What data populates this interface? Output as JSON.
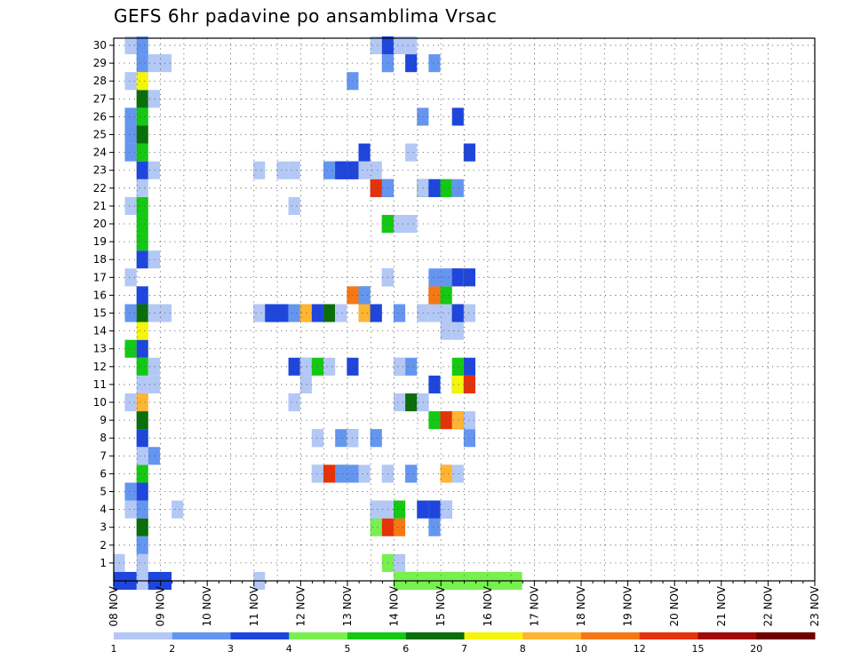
{
  "title": "GEFS 6hr padavine po ansamblima Vrsac",
  "chart_data": {
    "type": "heatmap",
    "title": "GEFS 6hr padavine po ansamblima Vrsac",
    "xlabel": "",
    "ylabel": "",
    "x_tick_labels": [
      "08 NOV",
      "09 NOV",
      "10 NOV",
      "11 NOV",
      "12 NOV",
      "13 NOV",
      "14 NOV",
      "15 NOV",
      "16 NOV",
      "17 NOV",
      "18 NOV",
      "19 NOV",
      "20 NOV",
      "21 NOV",
      "22 NOV",
      "23 NOV"
    ],
    "y_tick_labels": [
      "1",
      "2",
      "3",
      "4",
      "5",
      "6",
      "7",
      "8",
      "9",
      "10",
      "11",
      "12",
      "13",
      "14",
      "15",
      "16",
      "17",
      "18",
      "19",
      "20",
      "21",
      "22",
      "23",
      "24",
      "25",
      "26",
      "27",
      "28",
      "29",
      "30"
    ],
    "x_unit": "6-hour steps from 08 NOV 00Z",
    "x_range_steps": [
      0,
      60
    ],
    "y_range": [
      0,
      30
    ],
    "grid": true,
    "legend_position": "bottom",
    "levels": [
      "1",
      "2",
      "3",
      "4",
      "5",
      "6",
      "7",
      "8",
      "10",
      "12",
      "15",
      "20"
    ],
    "colors": [
      "#b4c8f5",
      "#6496f0",
      "#1e46dc",
      "#78f050",
      "#14c814",
      "#0a6e0a",
      "#f5f50a",
      "#ffb432",
      "#f57814",
      "#e6320a",
      "#a00a0a",
      "#6e0000"
    ],
    "cells": [
      [
        0,
        0,
        5,
        3
      ],
      [
        2,
        0,
        1,
        1
      ],
      [
        12,
        0,
        1,
        1
      ],
      [
        24,
        0,
        10,
        1
      ],
      [
        24,
        0,
        10,
        2
      ],
      [
        24,
        0,
        11,
        1
      ],
      [
        24,
        0,
        11,
        4
      ],
      [
        0,
        1,
        1,
        1
      ],
      [
        2,
        1,
        1,
        1
      ],
      [
        23,
        1,
        1,
        4
      ],
      [
        24,
        1,
        1,
        1
      ],
      [
        2,
        2,
        1,
        2
      ],
      [
        2,
        3,
        1,
        6
      ],
      [
        22,
        3,
        1,
        4
      ],
      [
        23,
        3,
        1,
        10
      ],
      [
        27,
        3,
        1,
        2
      ],
      [
        24,
        3,
        1,
        9
      ],
      [
        1,
        4,
        1,
        1
      ],
      [
        2,
        4,
        1,
        2
      ],
      [
        5,
        4,
        1,
        1
      ],
      [
        22,
        4,
        1,
        2
      ],
      [
        22,
        4,
        1,
        1
      ],
      [
        23,
        4,
        1,
        1
      ],
      [
        24,
        4,
        1,
        1
      ],
      [
        24,
        4,
        1,
        5
      ],
      [
        26,
        4,
        1,
        1
      ],
      [
        26,
        4,
        1,
        3
      ],
      [
        27,
        4,
        1,
        2
      ],
      [
        27,
        4,
        1,
        3
      ],
      [
        28,
        4,
        1,
        3
      ],
      [
        28,
        4,
        1,
        1
      ],
      [
        1,
        5,
        1,
        2
      ],
      [
        2,
        5,
        1,
        3
      ],
      [
        2,
        6,
        1,
        5
      ],
      [
        17,
        6,
        1,
        5
      ],
      [
        17,
        6,
        1,
        1
      ],
      [
        18,
        6,
        1,
        9
      ],
      [
        18,
        6,
        1,
        10
      ],
      [
        19,
        6,
        1,
        6
      ],
      [
        19,
        6,
        1,
        2
      ],
      [
        20,
        6,
        1,
        1
      ],
      [
        20,
        6,
        1,
        2
      ],
      [
        21,
        6,
        1,
        1
      ],
      [
        23,
        6,
        1,
        1
      ],
      [
        23,
        6,
        1,
        1
      ],
      [
        25,
        6,
        1,
        1
      ],
      [
        25,
        6,
        1,
        2
      ],
      [
        28,
        6,
        1,
        2
      ],
      [
        28,
        6,
        1,
        8
      ],
      [
        29,
        6,
        1,
        1
      ],
      [
        2,
        7,
        1,
        1
      ],
      [
        3,
        7,
        1,
        2
      ],
      [
        2,
        8,
        1,
        3
      ],
      [
        17,
        8,
        1,
        1
      ],
      [
        17,
        8,
        1,
        1
      ],
      [
        19,
        8,
        1,
        2
      ],
      [
        20,
        8,
        1,
        5
      ],
      [
        20,
        8,
        1,
        1
      ],
      [
        22,
        8,
        1,
        1
      ],
      [
        22,
        8,
        1,
        2
      ],
      [
        30,
        8,
        1,
        2
      ],
      [
        2,
        9,
        1,
        6
      ],
      [
        27,
        9,
        1,
        5
      ],
      [
        28,
        9,
        1,
        8
      ],
      [
        28,
        9,
        1,
        10
      ],
      [
        29,
        9,
        1,
        6
      ],
      [
        29,
        9,
        1,
        8
      ],
      [
        30,
        9,
        1,
        1
      ],
      [
        1,
        10,
        1,
        1
      ],
      [
        2,
        10,
        1,
        8
      ],
      [
        15,
        10,
        1,
        1
      ],
      [
        15,
        10,
        1,
        1
      ],
      [
        24,
        10,
        1,
        1
      ],
      [
        25,
        10,
        1,
        7
      ],
      [
        25,
        10,
        1,
        6
      ],
      [
        26,
        10,
        1,
        2
      ],
      [
        26,
        10,
        1,
        1
      ],
      [
        2,
        11,
        1,
        1
      ],
      [
        3,
        11,
        1,
        1
      ],
      [
        16,
        11,
        1,
        1
      ],
      [
        27,
        11,
        1,
        3
      ],
      [
        29,
        11,
        1,
        3
      ],
      [
        29,
        11,
        1,
        7
      ],
      [
        30,
        11,
        1,
        10
      ],
      [
        2,
        12,
        1,
        5
      ],
      [
        3,
        12,
        1,
        1
      ],
      [
        15,
        12,
        1,
        3
      ],
      [
        16,
        12,
        1,
        2
      ],
      [
        16,
        12,
        1,
        1
      ],
      [
        17,
        12,
        1,
        5
      ],
      [
        18,
        12,
        1,
        1
      ],
      [
        20,
        12,
        1,
        3
      ],
      [
        24,
        12,
        1,
        2
      ],
      [
        24,
        12,
        1,
        1
      ],
      [
        25,
        12,
        1,
        2
      ],
      [
        29,
        12,
        1,
        5
      ],
      [
        30,
        12,
        1,
        3
      ],
      [
        1,
        13,
        1,
        5
      ],
      [
        2,
        13,
        1,
        3
      ],
      [
        2,
        14,
        1,
        7
      ],
      [
        28,
        14,
        1,
        1
      ],
      [
        29,
        14,
        1,
        1
      ],
      [
        1,
        15,
        1,
        2
      ],
      [
        2,
        15,
        1,
        6
      ],
      [
        3,
        15,
        1,
        1
      ],
      [
        4,
        15,
        1,
        1
      ],
      [
        12,
        15,
        1,
        1
      ],
      [
        13,
        15,
        1,
        3
      ],
      [
        13,
        15,
        1,
        3
      ],
      [
        14,
        15,
        1,
        3
      ],
      [
        15,
        15,
        1,
        2
      ],
      [
        16,
        15,
        1,
        5
      ],
      [
        16,
        15,
        1,
        8
      ],
      [
        17,
        15,
        1,
        3
      ],
      [
        18,
        15,
        1,
        6
      ],
      [
        19,
        15,
        1,
        1
      ],
      [
        21,
        15,
        1,
        8
      ],
      [
        22,
        15,
        1,
        2
      ],
      [
        22,
        15,
        1,
        3
      ],
      [
        24,
        15,
        1,
        1
      ],
      [
        24,
        15,
        1,
        2
      ],
      [
        26,
        15,
        1,
        1
      ],
      [
        27,
        15,
        1,
        1
      ],
      [
        28,
        15,
        1,
        1
      ],
      [
        29,
        15,
        1,
        6
      ],
      [
        29,
        15,
        1,
        3
      ],
      [
        30,
        15,
        1,
        1
      ],
      [
        2,
        16,
        1,
        3
      ],
      [
        20,
        16,
        1,
        9
      ],
      [
        21,
        16,
        1,
        6
      ],
      [
        21,
        16,
        1,
        2
      ],
      [
        27,
        16,
        1,
        11
      ],
      [
        27,
        16,
        1,
        9
      ],
      [
        28,
        16,
        1,
        8
      ],
      [
        28,
        16,
        1,
        5
      ],
      [
        1,
        17,
        1,
        1
      ],
      [
        23,
        17,
        1,
        2
      ],
      [
        23,
        17,
        1,
        1
      ],
      [
        27,
        17,
        1,
        2
      ],
      [
        28,
        17,
        1,
        1
      ],
      [
        28,
        17,
        1,
        2
      ],
      [
        29,
        17,
        1,
        10
      ],
      [
        29,
        17,
        1,
        3
      ],
      [
        30,
        17,
        1,
        1
      ],
      [
        30,
        17,
        1,
        3
      ],
      [
        2,
        18,
        1,
        3
      ],
      [
        3,
        18,
        1,
        1
      ],
      [
        2,
        19,
        1,
        5
      ],
      [
        2,
        20,
        1,
        5
      ],
      [
        23,
        20,
        1,
        6
      ],
      [
        23,
        20,
        1,
        5
      ],
      [
        24,
        20,
        1,
        2
      ],
      [
        24,
        20,
        1,
        1
      ],
      [
        25,
        20,
        1,
        1
      ],
      [
        1,
        21,
        1,
        1
      ],
      [
        2,
        21,
        1,
        5
      ],
      [
        15,
        21,
        1,
        1
      ],
      [
        2,
        22,
        1,
        1
      ],
      [
        22,
        22,
        1,
        2
      ],
      [
        22,
        22,
        1,
        10
      ],
      [
        23,
        22,
        1,
        3
      ],
      [
        23,
        22,
        1,
        2
      ],
      [
        26,
        22,
        1,
        6
      ],
      [
        26,
        22,
        1,
        1
      ],
      [
        27,
        22,
        1,
        2
      ],
      [
        27,
        22,
        1,
        3
      ],
      [
        28,
        22,
        1,
        2
      ],
      [
        28,
        22,
        1,
        5
      ],
      [
        29,
        22,
        1,
        2
      ],
      [
        2,
        23,
        1,
        3
      ],
      [
        3,
        23,
        1,
        1
      ],
      [
        12,
        23,
        1,
        1
      ],
      [
        14,
        23,
        1,
        1
      ],
      [
        15,
        23,
        1,
        1
      ],
      [
        18,
        23,
        1,
        1
      ],
      [
        18,
        23,
        1,
        2
      ],
      [
        19,
        23,
        1,
        3
      ],
      [
        19,
        23,
        1,
        3
      ],
      [
        20,
        23,
        1,
        3
      ],
      [
        20,
        23,
        1,
        3
      ],
      [
        21,
        23,
        1,
        1
      ],
      [
        22,
        23,
        1,
        1
      ],
      [
        1,
        24,
        1,
        2
      ],
      [
        2,
        24,
        1,
        5
      ],
      [
        21,
        24,
        1,
        3
      ],
      [
        25,
        24,
        1,
        1
      ],
      [
        30,
        24,
        1,
        2
      ],
      [
        30,
        24,
        1,
        3
      ],
      [
        1,
        25,
        1,
        2
      ],
      [
        2,
        25,
        1,
        6
      ],
      [
        1,
        26,
        1,
        2
      ],
      [
        2,
        26,
        1,
        5
      ],
      [
        26,
        26,
        1,
        2
      ],
      [
        29,
        26,
        1,
        3
      ],
      [
        2,
        27,
        1,
        6
      ],
      [
        3,
        27,
        1,
        1
      ],
      [
        1,
        28,
        1,
        1
      ],
      [
        2,
        28,
        1,
        7
      ],
      [
        20,
        28,
        1,
        2
      ],
      [
        2,
        29,
        1,
        2
      ],
      [
        3,
        29,
        1,
        1
      ],
      [
        4,
        29,
        1,
        1
      ],
      [
        23,
        29,
        1,
        1
      ],
      [
        23,
        29,
        1,
        2
      ],
      [
        25,
        29,
        1,
        3
      ],
      [
        27,
        29,
        1,
        2
      ],
      [
        1,
        30,
        1,
        1
      ],
      [
        2,
        30,
        1,
        2
      ],
      [
        22,
        30,
        1,
        1
      ],
      [
        23,
        30,
        1,
        3
      ],
      [
        24,
        30,
        1,
        1
      ],
      [
        25,
        30,
        1,
        1
      ]
    ]
  }
}
